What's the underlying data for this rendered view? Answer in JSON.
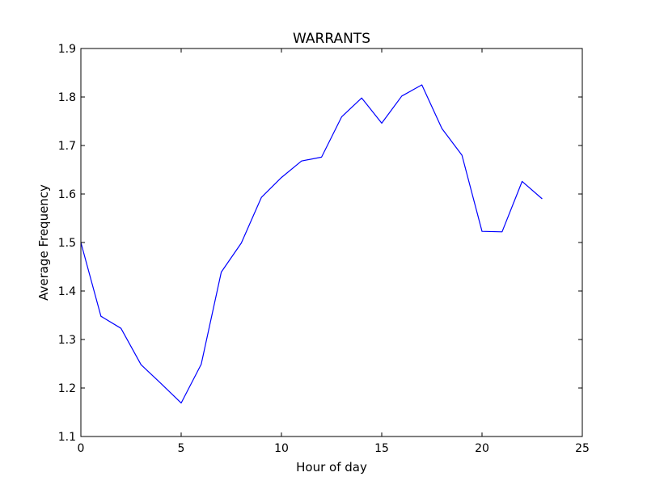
{
  "chart_data": {
    "type": "line",
    "title": "WARRANTS",
    "xlabel": "Hour of day",
    "ylabel": "Average Frequency",
    "xlim": [
      0,
      25
    ],
    "ylim": [
      1.1,
      1.9
    ],
    "xticks": [
      0,
      5,
      10,
      15,
      20,
      25
    ],
    "yticks": [
      1.1,
      1.2,
      1.3,
      1.4,
      1.5,
      1.6,
      1.7,
      1.8,
      1.9
    ],
    "grid": false,
    "line_color": "#0000ff",
    "x": [
      0,
      1,
      2,
      3,
      4,
      5,
      6,
      7,
      8,
      9,
      10,
      11,
      12,
      13,
      14,
      15,
      16,
      17,
      18,
      19,
      20,
      21,
      22,
      23
    ],
    "series": [
      {
        "values": [
          1.5,
          1.348,
          1.323,
          1.248,
          1.209,
          1.169,
          1.249,
          1.439,
          1.499,
          1.593,
          1.634,
          1.668,
          1.676,
          1.759,
          1.798,
          1.746,
          1.802,
          1.825,
          1.735,
          1.68,
          1.523,
          1.522,
          1.626,
          1.59
        ]
      }
    ]
  }
}
